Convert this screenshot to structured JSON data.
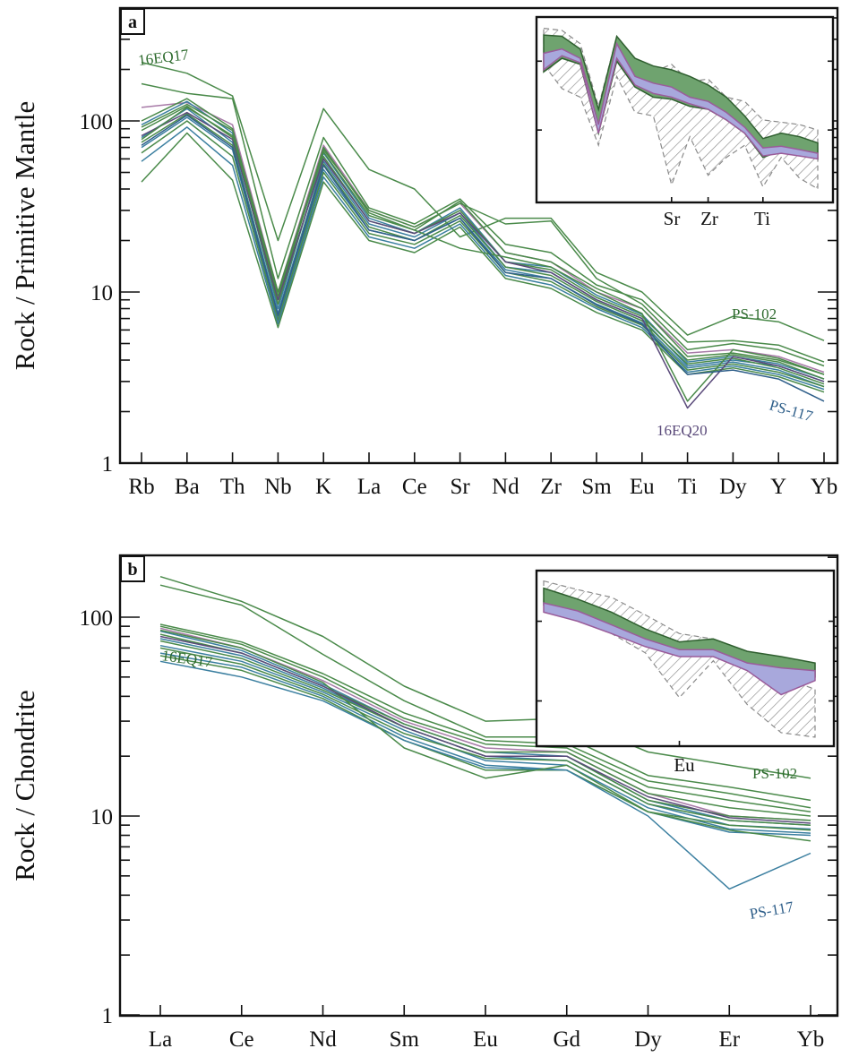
{
  "chart_data": [
    {
      "type": "line",
      "panel_label": "a",
      "ylabel": "Rock / Primitive Mantle",
      "yscale": "log",
      "ylim": [
        1,
        500
      ],
      "yticks": [
        1,
        10,
        100
      ],
      "ytick_labels": [
        "1",
        "10",
        "100"
      ],
      "categories": [
        "Rb",
        "Ba",
        "Th",
        "Nb",
        "K",
        "La",
        "Ce",
        "Sr",
        "Nd",
        "Zr",
        "Sm",
        "Eu",
        "Ti",
        "Dy",
        "Y",
        "Yb"
      ],
      "annotations": [
        {
          "text": "16EQ17",
          "color": "#2e6b2e"
        },
        {
          "text": "PS-102",
          "color": "#2e6b2e"
        },
        {
          "text": "16EQ20",
          "color": "#5a4a7a"
        },
        {
          "text": "PS-117",
          "color": "#2f5f8a"
        }
      ],
      "series": [
        {
          "color": "#4a8a4a",
          "values": [
            220,
            190,
            140,
            20,
            118,
            52,
            40,
            21,
            27,
            27,
            13,
            10,
            5.6,
            7.2,
            6.7,
            5.2
          ]
        },
        {
          "color": "#4a8a4a",
          "values": [
            165,
            145,
            135,
            12,
            80,
            31,
            25,
            35,
            19,
            17,
            11,
            9,
            5.1,
            5.2,
            4.9,
            3.9
          ]
        },
        {
          "color": "#a77aa7",
          "values": [
            120,
            128,
            95,
            10,
            72,
            30,
            24,
            33,
            17,
            15,
            10,
            8,
            4.4,
            4.6,
            4.2,
            3.4
          ]
        },
        {
          "color": "#4a8a4a",
          "values": [
            100,
            135,
            90,
            9,
            70,
            29,
            23,
            34,
            17,
            15,
            10.5,
            8,
            4.2,
            4.4,
            4.0,
            3.3
          ]
        },
        {
          "color": "#3b7fa0",
          "values": [
            95,
            130,
            85,
            8,
            65,
            27,
            22,
            31,
            15,
            14,
            9.6,
            7.4,
            3.9,
            4.2,
            3.8,
            3.1
          ]
        },
        {
          "color": "#4a8a4a",
          "values": [
            88,
            122,
            80,
            8.5,
            62,
            26,
            22,
            30,
            15,
            13.5,
            9.3,
            7.2,
            4.0,
            4.3,
            3.9,
            3.1
          ]
        },
        {
          "color": "#3b7fa0",
          "values": [
            80,
            118,
            75,
            7.5,
            58,
            25,
            21,
            29,
            14,
            13,
            9,
            7,
            3.7,
            4.0,
            3.7,
            3.0
          ]
        },
        {
          "color": "#4a8a4a",
          "values": [
            75,
            110,
            72,
            7.2,
            56,
            24,
            20,
            28,
            14,
            12.5,
            8.8,
            6.8,
            3.8,
            4.1,
            3.6,
            2.9
          ]
        },
        {
          "color": "#3b7fa0",
          "values": [
            70,
            105,
            68,
            7,
            52,
            23,
            20,
            27,
            13.5,
            12,
            8.5,
            6.6,
            3.6,
            3.9,
            3.5,
            2.8
          ]
        },
        {
          "color": "#4a8a4a",
          "values": [
            65,
            100,
            62,
            6.8,
            50,
            22,
            19,
            26,
            13,
            11.5,
            8.2,
            6.4,
            3.5,
            3.8,
            3.4,
            2.8
          ]
        },
        {
          "color": "#3b7fa0",
          "values": [
            58,
            92,
            55,
            6.5,
            47,
            21,
            18,
            25,
            12.5,
            11,
            8,
            6.2,
            3.4,
            3.7,
            3.3,
            2.7
          ]
        },
        {
          "color": "#4a8a4a",
          "values": [
            44,
            85,
            45,
            6.2,
            44,
            20,
            17,
            24,
            12,
            10.5,
            7.6,
            6,
            3.3,
            3.6,
            3.2,
            2.6
          ]
        },
        {
          "color": "#5a4a7a",
          "values": [
            82,
            112,
            78,
            9,
            60,
            26,
            22,
            29,
            15,
            13,
            9,
            7,
            2.1,
            4.2,
            3.7,
            3.0
          ]
        },
        {
          "color": "#4a8a4a",
          "values": [
            78,
            120,
            82,
            9.5,
            66,
            28,
            23,
            18,
            16,
            14,
            10,
            7.5,
            2.3,
            4.6,
            4.1,
            3.3
          ]
        },
        {
          "color": "#2f5f8a",
          "values": [
            72,
            108,
            70,
            7.3,
            55,
            23,
            20,
            27,
            13,
            12,
            8.4,
            6.5,
            3.3,
            3.5,
            3.1,
            2.3
          ]
        },
        {
          "color": "#4a8a4a",
          "values": [
            92,
            125,
            88,
            10,
            68,
            30,
            24,
            33,
            25,
            26,
            12,
            8.5,
            4.6,
            5.0,
            4.6,
            3.7
          ]
        }
      ]
    },
    {
      "type": "line",
      "panel_label": "b",
      "ylabel": "Rock / Chondrite",
      "yscale": "log",
      "ylim": [
        1,
        600
      ],
      "yticks": [
        1,
        10,
        100
      ],
      "ytick_labels": [
        "1",
        "10",
        "100"
      ],
      "categories": [
        "La",
        "Ce",
        "Nd",
        "Sm",
        "Eu",
        "Gd",
        "Dy",
        "Er",
        "Yb"
      ],
      "annotations": [
        {
          "text": "16EQ17",
          "color": "#2e6b2e"
        },
        {
          "text": "PS-102",
          "color": "#2e6b2e"
        },
        {
          "text": "PS-117",
          "color": "#2f5f8a"
        }
      ],
      "series": [
        {
          "color": "#4a8a4a",
          "values": [
            160,
            120,
            80,
            45,
            30,
            31,
            21,
            18,
            15.5
          ]
        },
        {
          "color": "#4a8a4a",
          "values": [
            145,
            115,
            65,
            38,
            25,
            25,
            16,
            14,
            12
          ]
        },
        {
          "color": "#4a8a4a",
          "values": [
            92,
            75,
            52,
            33,
            24,
            23,
            15,
            13,
            11
          ]
        },
        {
          "color": "#a77aa7",
          "values": [
            88,
            70,
            48,
            30,
            22,
            21,
            13,
            10,
            9.5
          ]
        },
        {
          "color": "#3b7fa0",
          "values": [
            85,
            68,
            46,
            29,
            21,
            20,
            12,
            9.5,
            9
          ]
        },
        {
          "color": "#4a8a4a",
          "values": [
            82,
            66,
            45,
            29,
            21,
            21,
            13,
            11,
            10
          ]
        },
        {
          "color": "#3b7fa0",
          "values": [
            78,
            64,
            44,
            28,
            20,
            19,
            11.5,
            9,
            8.6
          ]
        },
        {
          "color": "#4a8a4a",
          "values": [
            76,
            62,
            43,
            28,
            20,
            20,
            12,
            10,
            9.5
          ]
        },
        {
          "color": "#3b7fa0",
          "values": [
            72,
            60,
            42,
            27,
            19,
            18,
            11,
            8.6,
            8.2
          ]
        },
        {
          "color": "#4a8a4a",
          "values": [
            70,
            58,
            41,
            26,
            19.5,
            19,
            11.5,
            9.5,
            9
          ]
        },
        {
          "color": "#3b7fa0",
          "values": [
            66,
            56,
            40,
            25,
            18,
            17,
            10.5,
            8.3,
            8
          ]
        },
        {
          "color": "#4a8a4a",
          "values": [
            64,
            54,
            39,
            24,
            17,
            17,
            10.5,
            9,
            8.5
          ]
        },
        {
          "color": "#3b7fa0",
          "values": [
            60,
            50,
            38,
            24,
            17.5,
            17,
            10,
            4.3,
            6.5
          ]
        },
        {
          "color": "#4a8a4a",
          "values": [
            86,
            70,
            47,
            22,
            15.5,
            18,
            10.5,
            8.5,
            7.5
          ]
        },
        {
          "color": "#5a4a7a",
          "values": [
            80,
            66,
            45,
            28,
            20,
            20,
            12.5,
            9.8,
            9.2
          ]
        },
        {
          "color": "#4a8a4a",
          "values": [
            90,
            73,
            50,
            31,
            23,
            22,
            14,
            12,
            10.5
          ]
        }
      ]
    }
  ],
  "insets": [
    {
      "panel": "a",
      "categories": [
        "Rb",
        "Ba",
        "Th",
        "Nb",
        "K",
        "La",
        "Ce",
        "Sr",
        "Nd",
        "Zr",
        "Sm",
        "Eu",
        "Ti",
        "Dy",
        "Y",
        "Yb"
      ],
      "axis_labels": [
        "Sr",
        "Zr",
        "Ti"
      ],
      "label_indices": [
        7,
        9,
        12
      ],
      "hatched_range": {
        "upper": [
          300,
          280,
          180,
          22,
          230,
          95,
          70,
          90,
          50,
          55,
          30,
          26,
          14,
          13,
          12,
          10
        ],
        "lower": [
          90,
          40,
          30,
          6,
          60,
          18,
          16,
          1.6,
          8,
          2.2,
          4,
          6,
          1.5,
          4,
          2,
          1.4
        ]
      },
      "green_range": {
        "upper": [
          240,
          230,
          150,
          20,
          230,
          110,
          85,
          75,
          60,
          45,
          30,
          16,
          7.5,
          9,
          8,
          6.5
        ],
        "lower": [
          70,
          110,
          90,
          9,
          100,
          42,
          30,
          28,
          22,
          20,
          14,
          9,
          4,
          5,
          4.8,
          3.8
        ]
      },
      "purple_range": {
        "upper": [
          130,
          150,
          110,
          12,
          180,
          60,
          48,
          42,
          30,
          26,
          18,
          11,
          5.5,
          5.8,
          5.2,
          4.6
        ],
        "lower": [
          75,
          120,
          95,
          9,
          110,
          45,
          34,
          30,
          24,
          20,
          14,
          9,
          4.2,
          4.6,
          4.2,
          3.8
        ]
      }
    },
    {
      "panel": "b",
      "categories": [
        "La",
        "Ce",
        "Nd",
        "Sm",
        "Eu",
        "Gd",
        "Dy",
        "Er",
        "Yb"
      ],
      "axis_labels": [
        "Eu"
      ],
      "label_indices": [
        4
      ],
      "hatched_range": {
        "upper": [
          320,
          250,
          200,
          120,
          70,
          60,
          30,
          20,
          14
        ],
        "lower": [
          150,
          100,
          70,
          40,
          11,
          32,
          9,
          4,
          3.5
        ]
      },
      "green_range": {
        "upper": [
          260,
          190,
          130,
          80,
          55,
          60,
          42,
          36,
          30
        ],
        "lower": [
          160,
          120,
          80,
          55,
          38,
          38,
          26,
          22,
          20
        ]
      },
      "purple_range": {
        "upper": [
          170,
          135,
          90,
          60,
          44,
          44,
          30,
          26,
          24
        ],
        "lower": [
          130,
          100,
          70,
          48,
          36,
          36,
          24,
          12,
          18
        ]
      }
    }
  ],
  "styles": {
    "green_fill": "#6fa36f",
    "purple_fill": "#a8a8dc",
    "hatch_color": "#8a8a8a"
  }
}
